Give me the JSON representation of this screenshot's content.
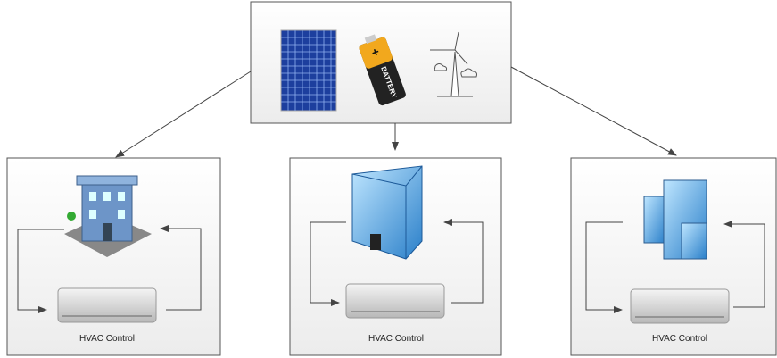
{
  "sources": {
    "battery_plus": "+",
    "battery_label": "BATTERY"
  },
  "buildings": [
    {
      "label": "HVAC Control"
    },
    {
      "label": "HVAC Control"
    },
    {
      "label": "HVAC Control"
    }
  ]
}
